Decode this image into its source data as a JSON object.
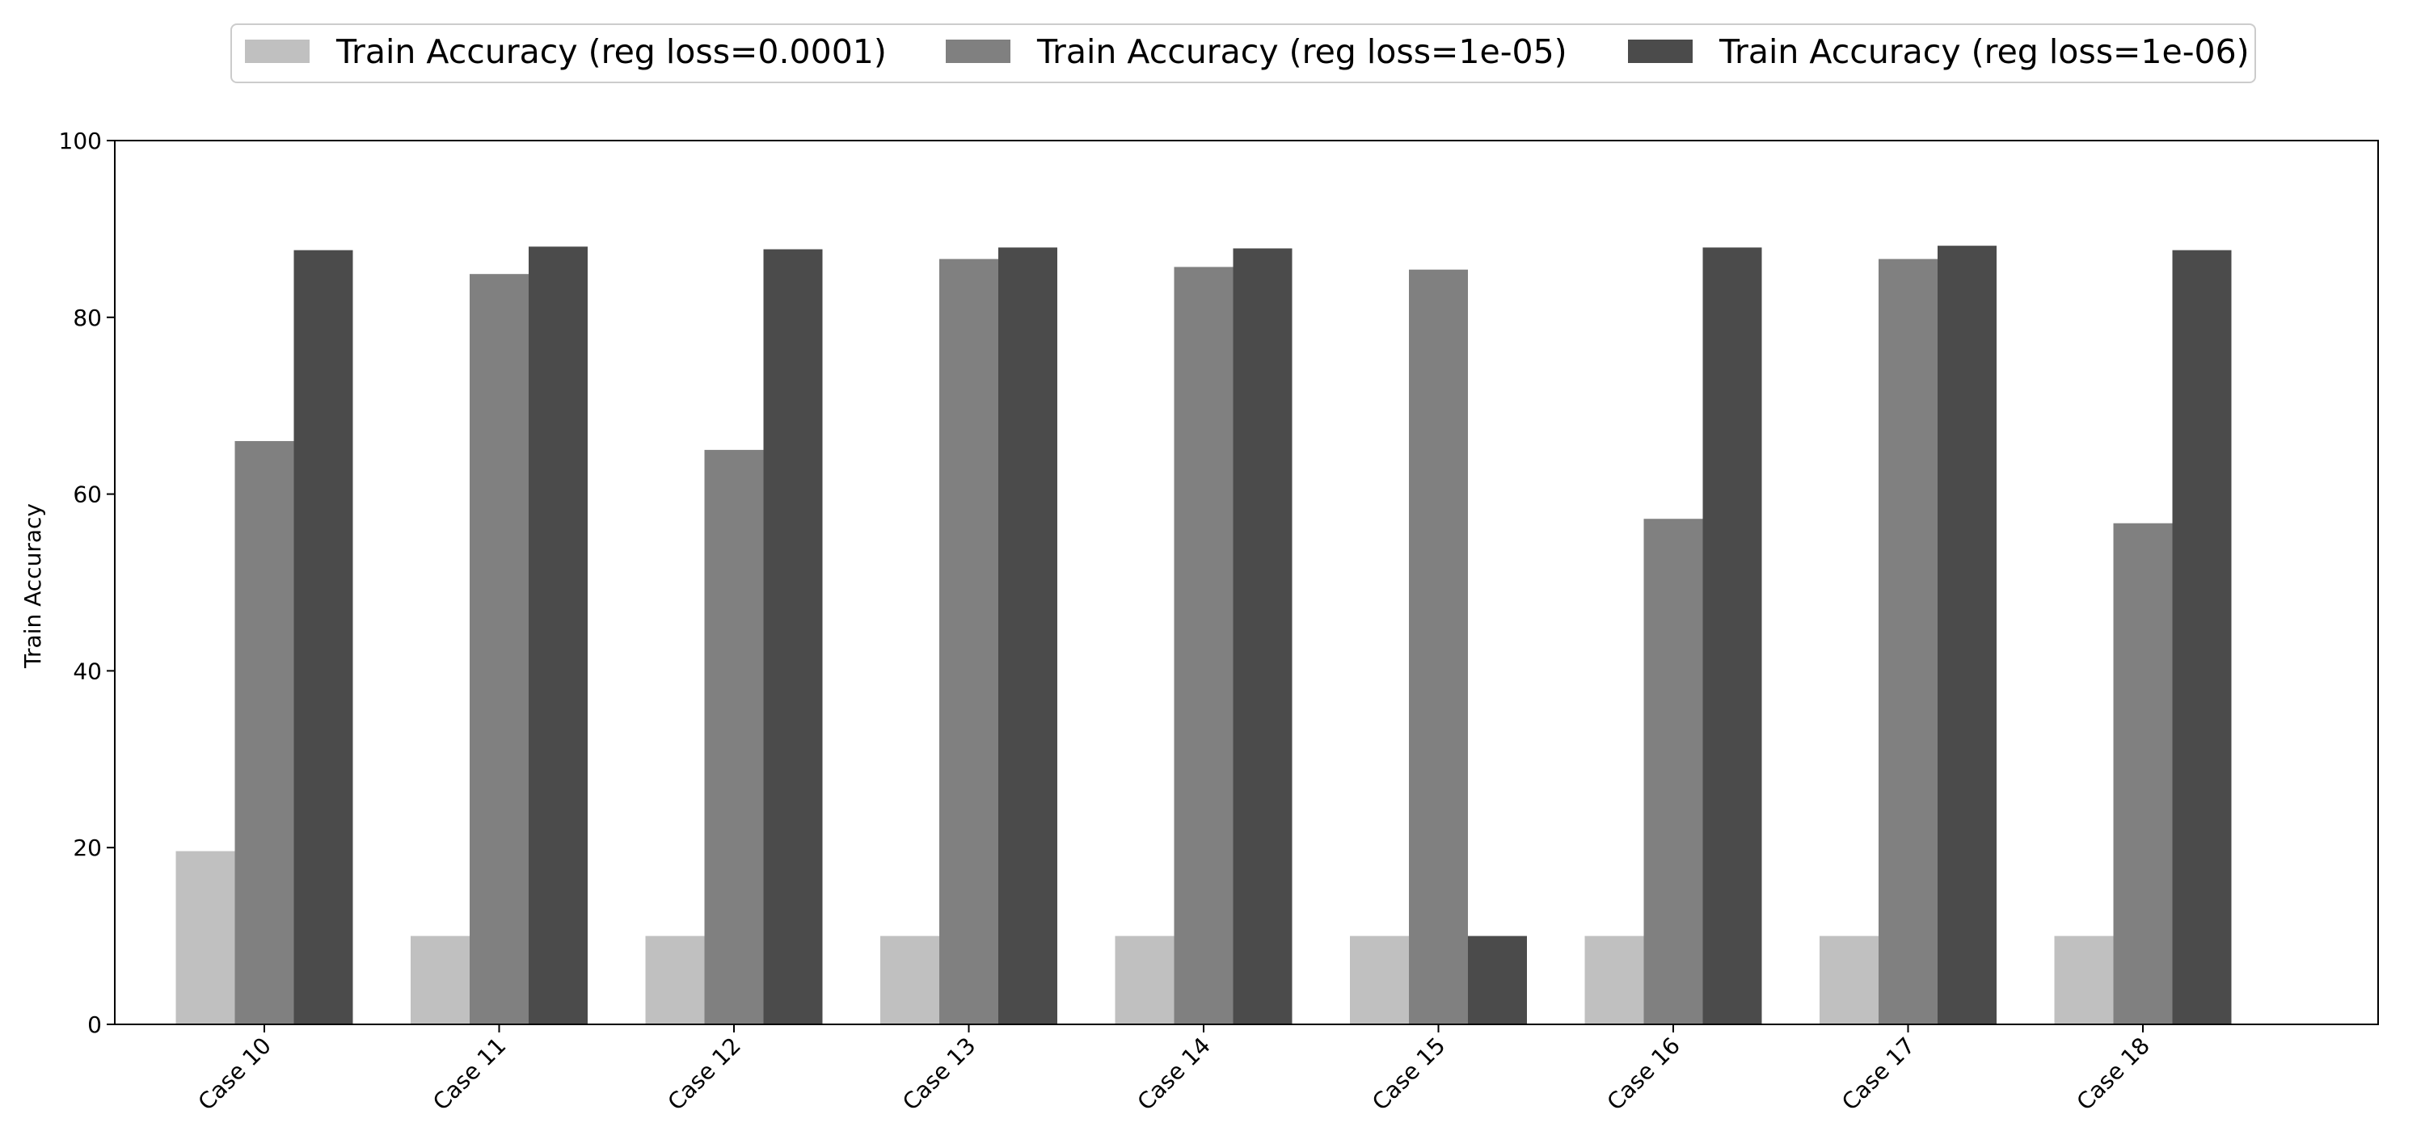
{
  "chart_data": {
    "type": "bar",
    "categories": [
      "Case 10",
      "Case 11",
      "Case 12",
      "Case 13",
      "Case 14",
      "Case 15",
      "Case 16",
      "Case 17",
      "Case 18"
    ],
    "series": [
      {
        "name": "Train Accuracy (reg loss=0.0001)",
        "color": "#c0c0c0",
        "values": [
          19.6,
          10.0,
          10.0,
          10.0,
          10.0,
          10.0,
          10.0,
          10.0,
          10.0
        ]
      },
      {
        "name": "Train Accuracy (reg loss=1e-05)",
        "color": "#808080",
        "values": [
          66.0,
          84.9,
          65.0,
          86.6,
          85.7,
          85.4,
          57.2,
          86.6,
          56.7
        ]
      },
      {
        "name": "Train Accuracy (reg loss=1e-06)",
        "color": "#4b4b4b",
        "values": [
          87.6,
          88.0,
          87.7,
          87.9,
          87.8,
          10.0,
          87.9,
          88.1,
          87.6
        ]
      }
    ],
    "xlabel": "",
    "ylabel": "Train Accuracy",
    "ylim": [
      0,
      100
    ],
    "yticks": [
      "0",
      "20",
      "40",
      "60",
      "80",
      "100"
    ],
    "grid": false,
    "legend_position": "top-center"
  }
}
